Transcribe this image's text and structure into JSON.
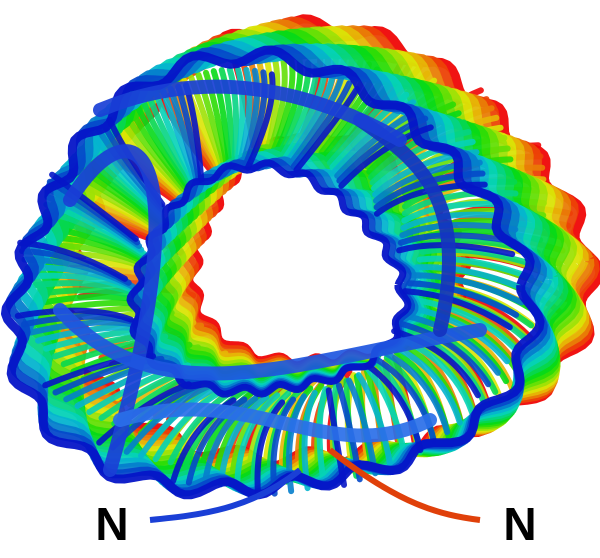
{
  "labels": {
    "left": "N",
    "right": "N"
  }
}
